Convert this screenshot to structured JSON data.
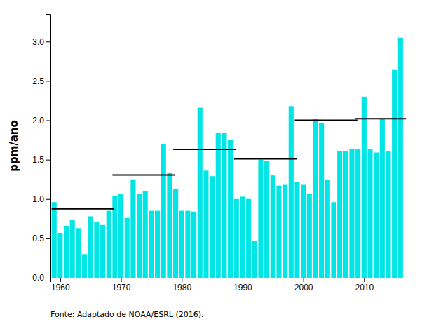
{
  "chart_data": {
    "type": "bar",
    "x": [
      1959,
      1960,
      1961,
      1962,
      1963,
      1964,
      1965,
      1966,
      1967,
      1968,
      1969,
      1970,
      1971,
      1972,
      1973,
      1974,
      1975,
      1976,
      1977,
      1978,
      1979,
      1980,
      1981,
      1982,
      1983,
      1984,
      1985,
      1986,
      1987,
      1988,
      1989,
      1990,
      1991,
      1992,
      1993,
      1994,
      1995,
      1996,
      1997,
      1998,
      1999,
      2000,
      2001,
      2002,
      2003,
      2004,
      2005,
      2006,
      2007,
      2008,
      2009,
      2010,
      2011,
      2012,
      2013,
      2014,
      2015,
      2016
    ],
    "values": [
      0.96,
      0.57,
      0.66,
      0.73,
      0.63,
      0.3,
      0.78,
      0.71,
      0.67,
      0.85,
      1.04,
      1.06,
      0.76,
      1.25,
      1.07,
      1.1,
      0.85,
      0.85,
      1.7,
      1.33,
      1.13,
      0.85,
      0.85,
      0.84,
      2.16,
      1.36,
      1.29,
      1.84,
      1.84,
      1.75,
      1.0,
      1.03,
      1.0,
      0.47,
      1.5,
      1.48,
      1.3,
      1.17,
      1.18,
      2.18,
      1.22,
      1.18,
      1.07,
      2.02,
      1.97,
      1.24,
      0.96,
      1.61,
      1.61,
      1.64,
      1.63,
      2.3,
      1.63,
      1.59,
      2.02,
      1.61,
      2.64,
      3.05
    ],
    "color": "#00E5E5",
    "mean_lines": [
      {
        "y": 0.875,
        "x_start": 1959.0,
        "x_end": 1968.5,
        "color": "black"
      },
      {
        "y": 1.305,
        "x_start": 1969.0,
        "x_end": 1978.5,
        "color": "black"
      },
      {
        "y": 1.63,
        "x_start": 1979.0,
        "x_end": 1988.5,
        "color": "black"
      },
      {
        "y": 1.51,
        "x_start": 1989.0,
        "x_end": 1998.5,
        "color": "black"
      },
      {
        "y": 2.0,
        "x_start": 1999.0,
        "x_end": 2008.5,
        "color": "black"
      },
      {
        "y": 2.02,
        "x_start": 2009.0,
        "x_end": 2016.5,
        "color": "black"
      }
    ],
    "y_label": "ppm/ano",
    "xlim": [
      1958.4,
      2017.0
    ],
    "xticks": [
      1960,
      1970,
      1980,
      1990,
      2000,
      2010
    ],
    "ylim": [
      0.0,
      3.35
    ],
    "yticks": [
      {
        "value": 0.0,
        "label": "0.0"
      },
      0.5,
      {
        "value": 1.0,
        "label": "1.0"
      },
      1.5,
      {
        "value": 2.0,
        "label": "2.0"
      },
      2.5,
      {
        "value": 3.0,
        "label": "3.0"
      }
    ],
    "annotations": [
      "Fonte: Adaptado de NOAA/ESRL (2016)."
    ],
    "grid": false
  }
}
